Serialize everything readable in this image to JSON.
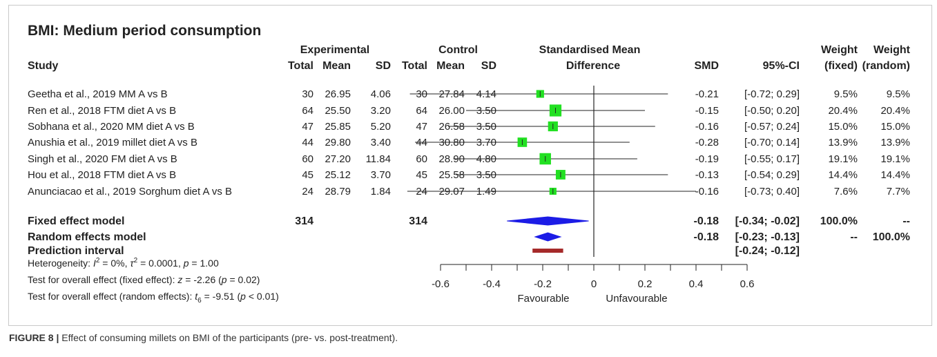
{
  "title": "BMI: Medium period consumption",
  "headers": {
    "study": "Study",
    "experimental": "Experimental",
    "control": "Control",
    "total": "Total",
    "mean": "Mean",
    "sd": "SD",
    "smd_line1": "Standardised Mean",
    "smd_line2": "Difference",
    "smd": "SMD",
    "ci": "95%-CI",
    "weight": "Weight",
    "fixed": "(fixed)",
    "random": "(random)"
  },
  "studies": [
    {
      "name": "Geetha et al., 2019 MM A vs B",
      "e_total": "30",
      "e_mean": "26.95",
      "e_sd": "4.06",
      "c_total": "30",
      "c_mean": "27.84",
      "c_sd": "4.14",
      "smd": -0.21,
      "lower": -0.72,
      "upper": 0.29,
      "smd_text": "-0.21",
      "ci_text": "[-0.72;  0.29]",
      "w_fixed": "9.5%",
      "w_random": "9.5%",
      "weight_fixed": 9.5
    },
    {
      "name": "Ren et al., 2018 FTM diet A vs B",
      "e_total": "64",
      "e_mean": "25.50",
      "e_sd": "3.20",
      "c_total": "64",
      "c_mean": "26.00",
      "c_sd": "3.50",
      "smd": -0.15,
      "lower": -0.5,
      "upper": 0.2,
      "smd_text": "-0.15",
      "ci_text": "[-0.50;  0.20]",
      "w_fixed": "20.4%",
      "w_random": "20.4%",
      "weight_fixed": 20.4
    },
    {
      "name": "Sobhana et al., 2020 MM diet A vs B",
      "e_total": "47",
      "e_mean": "25.85",
      "e_sd": "5.20",
      "c_total": "47",
      "c_mean": "26.58",
      "c_sd": "3.50",
      "smd": -0.16,
      "lower": -0.57,
      "upper": 0.24,
      "smd_text": "-0.16",
      "ci_text": "[-0.57;  0.24]",
      "w_fixed": "15.0%",
      "w_random": "15.0%",
      "weight_fixed": 15.0
    },
    {
      "name": "Anushia et al., 2019 millet diet A vs B",
      "e_total": "44",
      "e_mean": "29.80",
      "e_sd": "3.40",
      "c_total": "44",
      "c_mean": "30.80",
      "c_sd": "3.70",
      "smd": -0.28,
      "lower": -0.7,
      "upper": 0.14,
      "smd_text": "-0.28",
      "ci_text": "[-0.70;  0.14]",
      "w_fixed": "13.9%",
      "w_random": "13.9%",
      "weight_fixed": 13.9
    },
    {
      "name": "Singh et al., 2020 FM diet A vs B",
      "e_total": "60",
      "e_mean": "27.20",
      "e_sd": "11.84",
      "c_total": "60",
      "c_mean": "28.90",
      "c_sd": "4.80",
      "smd": -0.19,
      "lower": -0.55,
      "upper": 0.17,
      "smd_text": "-0.19",
      "ci_text": "[-0.55;  0.17]",
      "w_fixed": "19.1%",
      "w_random": "19.1%",
      "weight_fixed": 19.1
    },
    {
      "name": "Hou et al., 2018 FTM diet A vs B",
      "e_total": "45",
      "e_mean": "25.12",
      "e_sd": "3.70",
      "c_total": "45",
      "c_mean": "25.58",
      "c_sd": "3.50",
      "smd": -0.13,
      "lower": -0.54,
      "upper": 0.29,
      "smd_text": "-0.13",
      "ci_text": "[-0.54;  0.29]",
      "w_fixed": "14.4%",
      "w_random": "14.4%",
      "weight_fixed": 14.4
    },
    {
      "name": "Anunciacao et al., 2019 Sorghum diet A vs B",
      "e_total": "24",
      "e_mean": "28.79",
      "e_sd": "1.84",
      "c_total": "24",
      "c_mean": "29.07",
      "c_sd": "1.49",
      "smd": -0.16,
      "lower": -0.73,
      "upper": 0.4,
      "smd_text": "-0.16",
      "ci_text": "[-0.73;  0.40]",
      "w_fixed": "7.6%",
      "w_random": "7.7%",
      "weight_fixed": 7.6
    }
  ],
  "summary": [
    {
      "name": "Fixed effect model",
      "e_total": "314",
      "c_total": "314",
      "kind": "diamond",
      "smd": -0.18,
      "lower": -0.34,
      "upper": -0.02,
      "smd_text": "-0.18",
      "ci_text": "[-0.34; -0.02]",
      "w_fixed": "100.0%",
      "w_random": "--"
    },
    {
      "name": "Random effects model",
      "e_total": "",
      "c_total": "",
      "kind": "diamond",
      "smd": -0.18,
      "lower": -0.23,
      "upper": -0.13,
      "smd_text": "-0.18",
      "ci_text": "[-0.23; -0.13]",
      "w_fixed": "--",
      "w_random": "100.0%"
    },
    {
      "name": "Prediction interval",
      "e_total": "",
      "c_total": "",
      "kind": "interval",
      "smd": -0.18,
      "lower": -0.24,
      "upper": -0.12,
      "smd_text": "",
      "ci_text": "[-0.24; -0.12]",
      "w_fixed": "",
      "w_random": ""
    }
  ],
  "stats": {
    "heterogeneity": {
      "label": "Heterogeneity: ",
      "I": "I",
      "sq": "2",
      "i_val": " = 0%, ",
      "tau": "τ",
      "tau_val": " = 0.0001, ",
      "p": "p",
      "p_val": " = 1.00"
    },
    "fixed_test": {
      "label": "Test for overall effect (fixed effect): ",
      "z": "z",
      "z_val": " = -2.26 (",
      "p": "p",
      "p_val": " = 0.02)"
    },
    "random_test": {
      "label": "Test for overall effect (random effects): ",
      "t": "t",
      "t_sub": "6",
      "t_val": " = -9.51 (",
      "p": "p",
      "p_val": " < 0.01)"
    }
  },
  "chart_data": {
    "type": "forest",
    "xlim": [
      -0.6,
      0.6
    ],
    "x_ticks": [
      "-0.6",
      "-0.4",
      "-0.2",
      "0",
      "0.2",
      "0.4",
      "0.6"
    ],
    "x_tick_values": [
      -0.6,
      -0.4,
      -0.2,
      0,
      0.2,
      0.4,
      0.6
    ],
    "left_label": "Favourable",
    "right_label": "Unfavourable",
    "ref_line": 0,
    "colors": {
      "square": "#22e022",
      "diamond": "#1c1ce6",
      "prediction": "#a52a2a",
      "line": "#222222"
    }
  },
  "caption": {
    "label": "FIGURE 8 | ",
    "text": "Effect of consuming millets on BMI of the participants (pre- vs. post-treatment)."
  }
}
